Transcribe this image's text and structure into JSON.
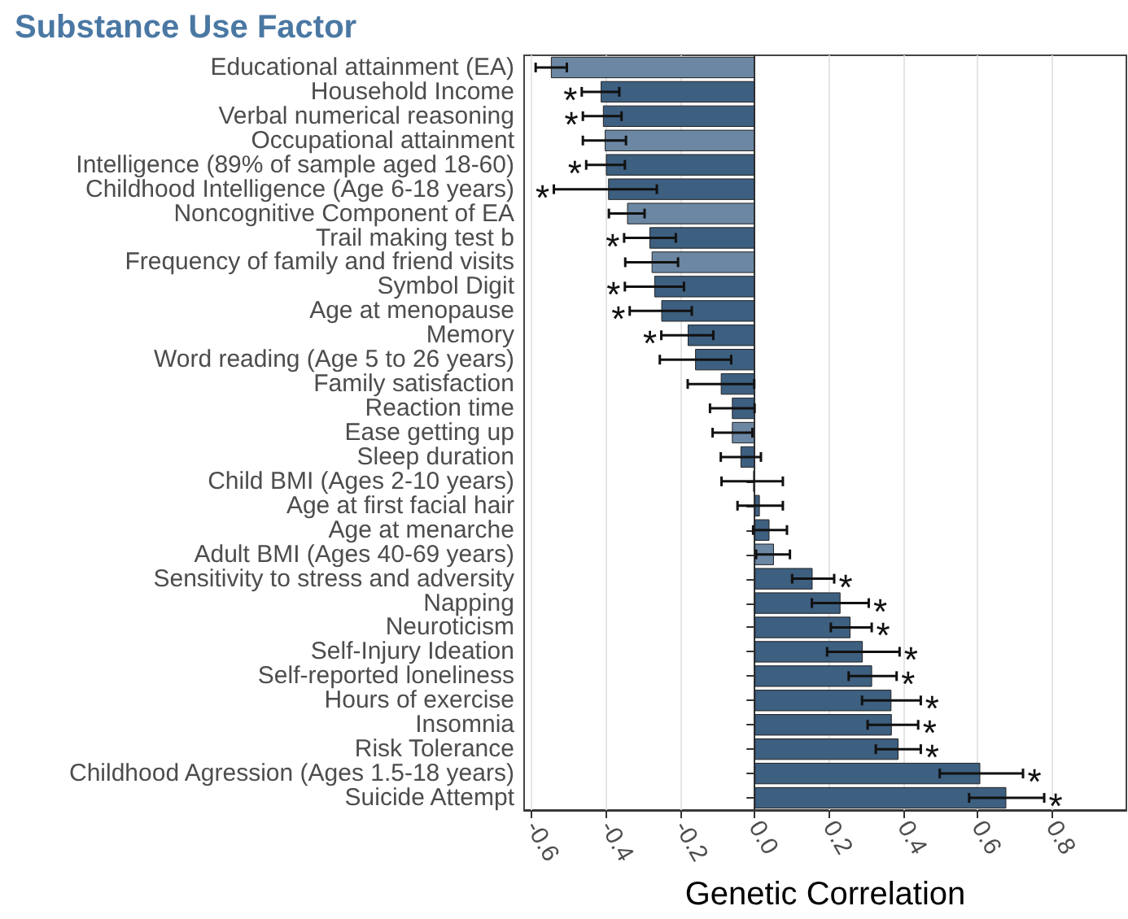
{
  "chart_data": {
    "type": "bar",
    "orientation": "horizontal",
    "title": "Substance Use Factor",
    "xlabel": "Genetic Correlation",
    "categories": [
      "Educational attainment (EA)",
      "Household Income",
      "Verbal numerical reasoning",
      "Occupational attainment",
      "Intelligence (89% of sample aged 18-60)",
      "Childhood Intelligence (Age 6-18 years)",
      "Noncognitive Component of EA",
      "Trail making test b",
      "Frequency of family and friend visits",
      "Symbol Digit",
      "Age at menopause",
      "Memory",
      "Word reading (Age 5 to 26 years)",
      "Family satisfaction",
      "Reaction time",
      "Ease getting up",
      "Sleep duration",
      "Child BMI (Ages 2-10 years)",
      "Age at first facial hair",
      "Age at menarche",
      "Adult BMI (Ages 40-69 years)",
      "Sensitivity to stress and adversity",
      "Napping",
      "Neuroticism",
      "Self-Injury Ideation",
      "Self-reported loneliness",
      "Hours of exercise",
      "Insomnia",
      "Risk Tolerance",
      "Childhood Agression (Ages 1.5-18 years)",
      "Suicide Attempt"
    ],
    "values": [
      -0.548,
      -0.414,
      -0.408,
      -0.403,
      -0.4,
      -0.394,
      -0.343,
      -0.283,
      -0.277,
      -0.27,
      -0.251,
      -0.18,
      -0.16,
      -0.091,
      -0.061,
      -0.061,
      -0.038,
      -0.004,
      0.014,
      0.04,
      0.052,
      0.156,
      0.231,
      0.258,
      0.291,
      0.316,
      0.368,
      0.369,
      0.387,
      0.607,
      0.677
    ],
    "errors": [
      [
        -0.589,
        -0.505
      ],
      [
        -0.465,
        -0.364
      ],
      [
        -0.462,
        -0.358
      ],
      [
        -0.462,
        -0.346
      ],
      [
        -0.453,
        -0.349
      ],
      [
        -0.54,
        -0.263
      ],
      [
        -0.392,
        -0.296
      ],
      [
        -0.351,
        -0.212
      ],
      [
        -0.348,
        -0.206
      ],
      [
        -0.349,
        -0.19
      ],
      [
        -0.336,
        -0.169
      ],
      [
        -0.251,
        -0.111
      ],
      [
        -0.255,
        -0.063
      ],
      [
        -0.18,
        -0.001
      ],
      [
        -0.12,
        0.0
      ],
      [
        -0.113,
        -0.006
      ],
      [
        -0.091,
        0.017
      ],
      [
        -0.089,
        0.076
      ],
      [
        -0.046,
        0.076
      ],
      [
        -0.004,
        0.087
      ],
      [
        0.004,
        0.095
      ],
      [
        0.101,
        0.214
      ],
      [
        0.154,
        0.307
      ],
      [
        0.205,
        0.315
      ],
      [
        0.195,
        0.39
      ],
      [
        0.253,
        0.382
      ],
      [
        0.289,
        0.447
      ],
      [
        0.304,
        0.44
      ],
      [
        0.326,
        0.447
      ],
      [
        0.498,
        0.722
      ],
      [
        0.577,
        0.779
      ]
    ],
    "colors": [
      "#6b87a3",
      "#3d5f80",
      "#3d5f80",
      "#6b87a3",
      "#3d5f80",
      "#3d5f80",
      "#6b87a3",
      "#3d5f80",
      "#6b87a3",
      "#3d5f80",
      "#3d5f80",
      "#3d5f80",
      "#3d5f80",
      "#3d5f80",
      "#3d5f80",
      "#6b87a3",
      "#3d5f80",
      "#3d5f80",
      "#3d5f80",
      "#3d5f80",
      "#6b87a3",
      "#3d5f80",
      "#3d5f80",
      "#3d5f80",
      "#3d5f80",
      "#3d5f80",
      "#3d5f80",
      "#3d5f80",
      "#3d5f80",
      "#3d5f80",
      "#3d5f80"
    ],
    "xlim": [
      -0.62,
      1.0
    ],
    "xticks": [
      -0.6,
      -0.4,
      -0.2,
      {
        "value": 0,
        "label": "0.0"
      },
      0.2,
      0.4,
      0.6,
      0.8
    ],
    "grid": "x",
    "annotations": [
      {
        "text": "*",
        "x": -0.465,
        "y": "Household Income"
      },
      {
        "text": "*",
        "x": -0.462,
        "y": "Verbal numerical reasoning"
      },
      {
        "text": "*",
        "x": -0.453,
        "y": "Intelligence (89% of sample aged 18-60)"
      },
      {
        "text": "*",
        "x": -0.54,
        "y": "Childhood Intelligence (Age 6-18 years)"
      },
      {
        "text": "*",
        "x": -0.351,
        "y": "Trail making test b"
      },
      {
        "text": "*",
        "x": -0.349,
        "y": "Symbol Digit"
      },
      {
        "text": "*",
        "x": -0.336,
        "y": "Age at menopause"
      },
      {
        "text": "*",
        "x": -0.251,
        "y": "Memory"
      },
      {
        "text": "*",
        "x": 0.214,
        "y": "Sensitivity to stress and adversity"
      },
      {
        "text": "*",
        "x": 0.307,
        "y": "Napping"
      },
      {
        "text": "*",
        "x": 0.315,
        "y": "Neuroticism"
      },
      {
        "text": "*",
        "x": 0.39,
        "y": "Self-Injury Ideation"
      },
      {
        "text": "*",
        "x": 0.382,
        "y": "Self-reported loneliness"
      },
      {
        "text": "*",
        "x": 0.447,
        "y": "Hours of exercise"
      },
      {
        "text": "*",
        "x": 0.44,
        "y": "Insomnia"
      },
      {
        "text": "*",
        "x": 0.447,
        "y": "Risk Tolerance"
      },
      {
        "text": "*",
        "x": 0.722,
        "y": "Childhood Agression (Ages 1.5-18 years)"
      },
      {
        "text": "*",
        "x": 0.779,
        "y": "Suicide Attempt"
      }
    ]
  }
}
